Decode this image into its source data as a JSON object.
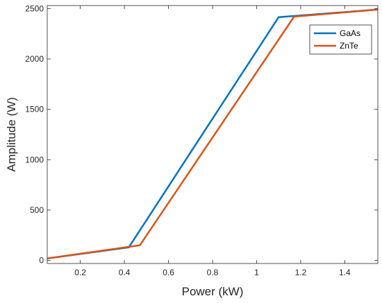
{
  "chart_data": {
    "type": "line",
    "title": "",
    "xlabel": "Power (kW)",
    "ylabel": "Amplitude (W)",
    "xlim": [
      0.05,
      1.55
    ],
    "ylim": [
      -30,
      2530
    ],
    "xticks": [
      0.2,
      0.4,
      0.6,
      0.8,
      1,
      1.2,
      1.4
    ],
    "xtick_labels": [
      "0.2",
      "0.4",
      "0.6",
      "0.8",
      "1",
      "1.2",
      "1.4"
    ],
    "yticks": [
      0,
      500,
      1000,
      1500,
      2000,
      2500
    ],
    "ytick_labels": [
      "0",
      "500",
      "1000",
      "1500",
      "2000",
      "2500"
    ],
    "grid": false,
    "legend_position": "top-right",
    "series": [
      {
        "name": "GaAs",
        "color": "#0072bd",
        "x": [
          0.05,
          0.42,
          1.1,
          1.55
        ],
        "y": [
          20,
          130,
          2415,
          2490
        ]
      },
      {
        "name": "ZnTe",
        "color": "#d95319",
        "x": [
          0.05,
          0.47,
          1.17,
          1.55
        ],
        "y": [
          20,
          150,
          2420,
          2490
        ]
      }
    ]
  }
}
